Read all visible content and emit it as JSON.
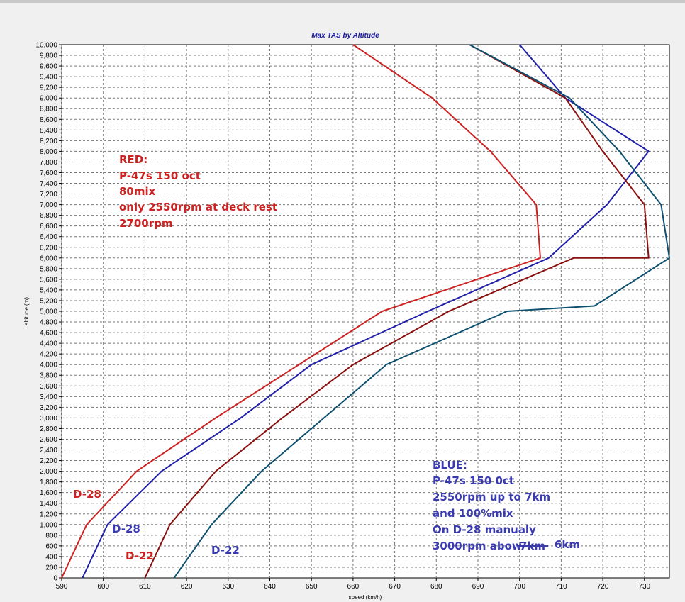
{
  "chart_data": {
    "type": "line",
    "title": "Max TAS by Altitude",
    "xlabel": "speed (km/h)",
    "ylabel": "altitude (m)",
    "xlim": [
      590,
      736
    ],
    "ylim": [
      0,
      10000
    ],
    "x_ticks": [
      590,
      600,
      610,
      620,
      630,
      640,
      650,
      660,
      670,
      680,
      690,
      700,
      710,
      720,
      730
    ],
    "y_tick_step": 200,
    "grid": true,
    "series": [
      {
        "color": "#cc2222",
        "points": [
          [
            590,
            0
          ],
          [
            596,
            1000
          ],
          [
            608,
            2000
          ],
          [
            627,
            3000
          ],
          [
            647,
            4000
          ],
          [
            667,
            5000
          ],
          [
            705,
            6000
          ],
          [
            705,
            6000
          ],
          [
            704,
            7000
          ],
          [
            693,
            8000
          ],
          [
            679,
            9000
          ],
          [
            660,
            10000
          ]
        ]
      },
      {
        "color": "#2020a8",
        "points": [
          [
            595,
            0
          ],
          [
            601,
            1000
          ],
          [
            614,
            2000
          ],
          [
            633,
            3000
          ],
          [
            650,
            4000
          ],
          [
            678,
            5000
          ],
          [
            707,
            6000
          ],
          [
            721,
            7000
          ],
          [
            731,
            8000
          ],
          [
            711,
            9000
          ],
          [
            700,
            10000
          ]
        ]
      },
      {
        "color": "#8a1010",
        "points": [
          [
            610,
            0
          ],
          [
            616,
            1000
          ],
          [
            627,
            2000
          ],
          [
            643,
            3000
          ],
          [
            660,
            4000
          ],
          [
            683,
            5000
          ],
          [
            713,
            6000
          ],
          [
            731,
            6000
          ],
          [
            730,
            7000
          ],
          [
            720,
            8000
          ],
          [
            711,
            9000
          ],
          [
            688,
            10000
          ]
        ]
      },
      {
        "color": "#0e5070",
        "points": [
          [
            617,
            0
          ],
          [
            626,
            1000
          ],
          [
            638,
            2000
          ],
          [
            653,
            3000
          ],
          [
            668,
            4000
          ],
          [
            697,
            5000
          ],
          [
            718,
            5100
          ],
          [
            736,
            6000
          ],
          [
            734,
            7000
          ],
          [
            724,
            8000
          ],
          [
            712,
            9000
          ],
          [
            688,
            10000
          ]
        ]
      }
    ],
    "annotations": {
      "red_note": [
        "RED:",
        "P-47s 150 oct",
        "80mix",
        "only 2550rpm at deck rest",
        "2700rpm"
      ],
      "blue_note": [
        "BLUE:",
        "P-47s 150 0ct",
        "2550rpm up to 7km",
        "and 100%mix",
        "On D-28 manualy",
        "3000rpm abow",
        "7km",
        "6km"
      ],
      "red_d28": "D-28",
      "red_d22": "D-22",
      "blue_d28": "D-28",
      "blue_d22": "D-22"
    },
    "colors": {
      "red_text": "#cc2222",
      "blue_text": "#3b3bb0"
    }
  }
}
